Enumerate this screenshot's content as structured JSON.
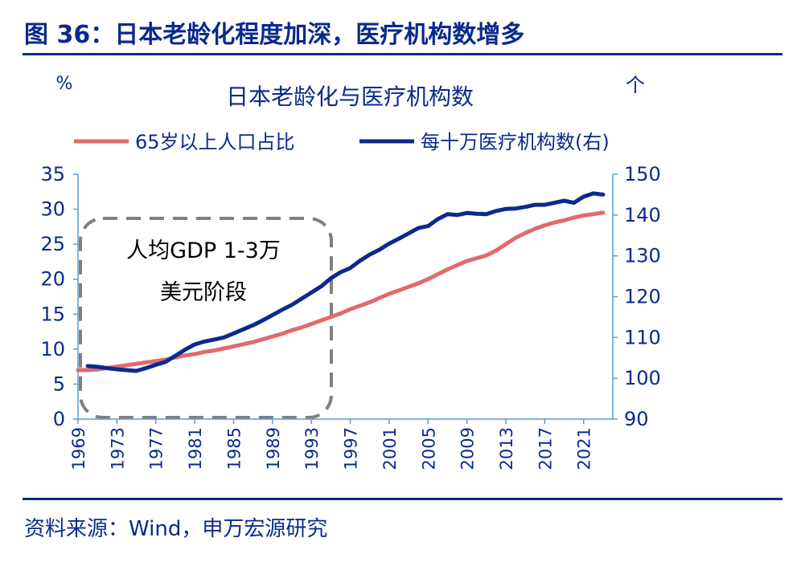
{
  "figure_title": "图 36：日本老龄化程度加深，医疗机构数增多",
  "source_note": "资料来源：Wind，申万宏源研究",
  "colors": {
    "red": "#e06b6b",
    "navy": "#0a2a8c",
    "axis_blue": "#5b9bd5",
    "dash_grey": "#808080",
    "text": "#0a2a8c"
  },
  "chart_data": {
    "type": "line",
    "title": "日本老龄化与医疗机构数",
    "left_unit": "%",
    "right_unit": "个",
    "legend": [
      "65岁以上人口占比",
      "每十万医疗机构数(右)"
    ],
    "legend_position": "top",
    "annotation": [
      "人均GDP 1-3万",
      "美元阶段"
    ],
    "annotation_range": [
      1969,
      1995
    ],
    "x_tick_labels": [
      "1969",
      "1973",
      "1977",
      "1981",
      "1985",
      "1989",
      "1993",
      "1997",
      "2001",
      "2005",
      "2009",
      "2013",
      "2017",
      "2021"
    ],
    "x_range": [
      1969,
      2024
    ],
    "left_axis": {
      "ylim": [
        0,
        35
      ],
      "ticks": [
        "0",
        "5",
        "10",
        "15",
        "20",
        "25",
        "30",
        "35"
      ]
    },
    "right_axis": {
      "ylim": [
        90,
        150
      ],
      "ticks": [
        "90",
        "100",
        "110",
        "120",
        "130",
        "140",
        "150"
      ]
    },
    "grid": false,
    "series": [
      {
        "name": "65岁以上人口占比",
        "axis": "left",
        "x": [
          1969,
          1970,
          1971,
          1972,
          1973,
          1974,
          1975,
          1976,
          1977,
          1978,
          1979,
          1980,
          1981,
          1982,
          1983,
          1984,
          1985,
          1986,
          1987,
          1988,
          1989,
          1990,
          1991,
          1992,
          1993,
          1994,
          1995,
          1996,
          1997,
          1998,
          1999,
          2000,
          2001,
          2002,
          2003,
          2004,
          2005,
          2006,
          2007,
          2008,
          2009,
          2010,
          2011,
          2012,
          2013,
          2014,
          2015,
          2016,
          2017,
          2018,
          2019,
          2020,
          2021,
          2022,
          2023
        ],
        "values": [
          7.0,
          7.0,
          7.1,
          7.3,
          7.5,
          7.7,
          7.9,
          8.1,
          8.3,
          8.5,
          8.8,
          9.1,
          9.3,
          9.6,
          9.8,
          10.1,
          10.4,
          10.7,
          11.0,
          11.4,
          11.8,
          12.2,
          12.7,
          13.1,
          13.6,
          14.1,
          14.6,
          15.1,
          15.7,
          16.2,
          16.7,
          17.3,
          17.9,
          18.4,
          18.9,
          19.4,
          20.0,
          20.7,
          21.4,
          22.0,
          22.6,
          23.0,
          23.4,
          24.1,
          25.0,
          25.9,
          26.6,
          27.2,
          27.7,
          28.1,
          28.4,
          28.8,
          29.1,
          29.3,
          29.5
        ]
      },
      {
        "name": "每十万医疗机构数(右)",
        "axis": "right",
        "x": [
          1970,
          1971,
          1972,
          1973,
          1974,
          1975,
          1976,
          1977,
          1978,
          1979,
          1980,
          1981,
          1982,
          1983,
          1984,
          1985,
          1986,
          1987,
          1988,
          1989,
          1990,
          1991,
          1992,
          1993,
          1994,
          1995,
          1996,
          1997,
          1998,
          1999,
          2000,
          2001,
          2002,
          2003,
          2004,
          2005,
          2006,
          2007,
          2008,
          2009,
          2010,
          2011,
          2012,
          2013,
          2014,
          2015,
          2016,
          2017,
          2018,
          2019,
          2020,
          2021,
          2022,
          2023
        ],
        "values": [
          103.0,
          102.8,
          102.5,
          102.2,
          102.0,
          101.8,
          102.5,
          103.3,
          104.0,
          105.5,
          107.0,
          108.3,
          109.0,
          109.5,
          110.0,
          111.0,
          112.0,
          113.0,
          114.2,
          115.5,
          116.8,
          118.0,
          119.5,
          121.0,
          122.5,
          124.5,
          126.0,
          127.0,
          128.8,
          130.3,
          131.5,
          133.0,
          134.2,
          135.5,
          136.8,
          137.3,
          139.0,
          140.2,
          140.0,
          140.5,
          140.3,
          140.2,
          141.0,
          141.5,
          141.6,
          142.0,
          142.5,
          142.5,
          143.0,
          143.5,
          143.0,
          144.5,
          145.3,
          145.0
        ]
      }
    ]
  }
}
